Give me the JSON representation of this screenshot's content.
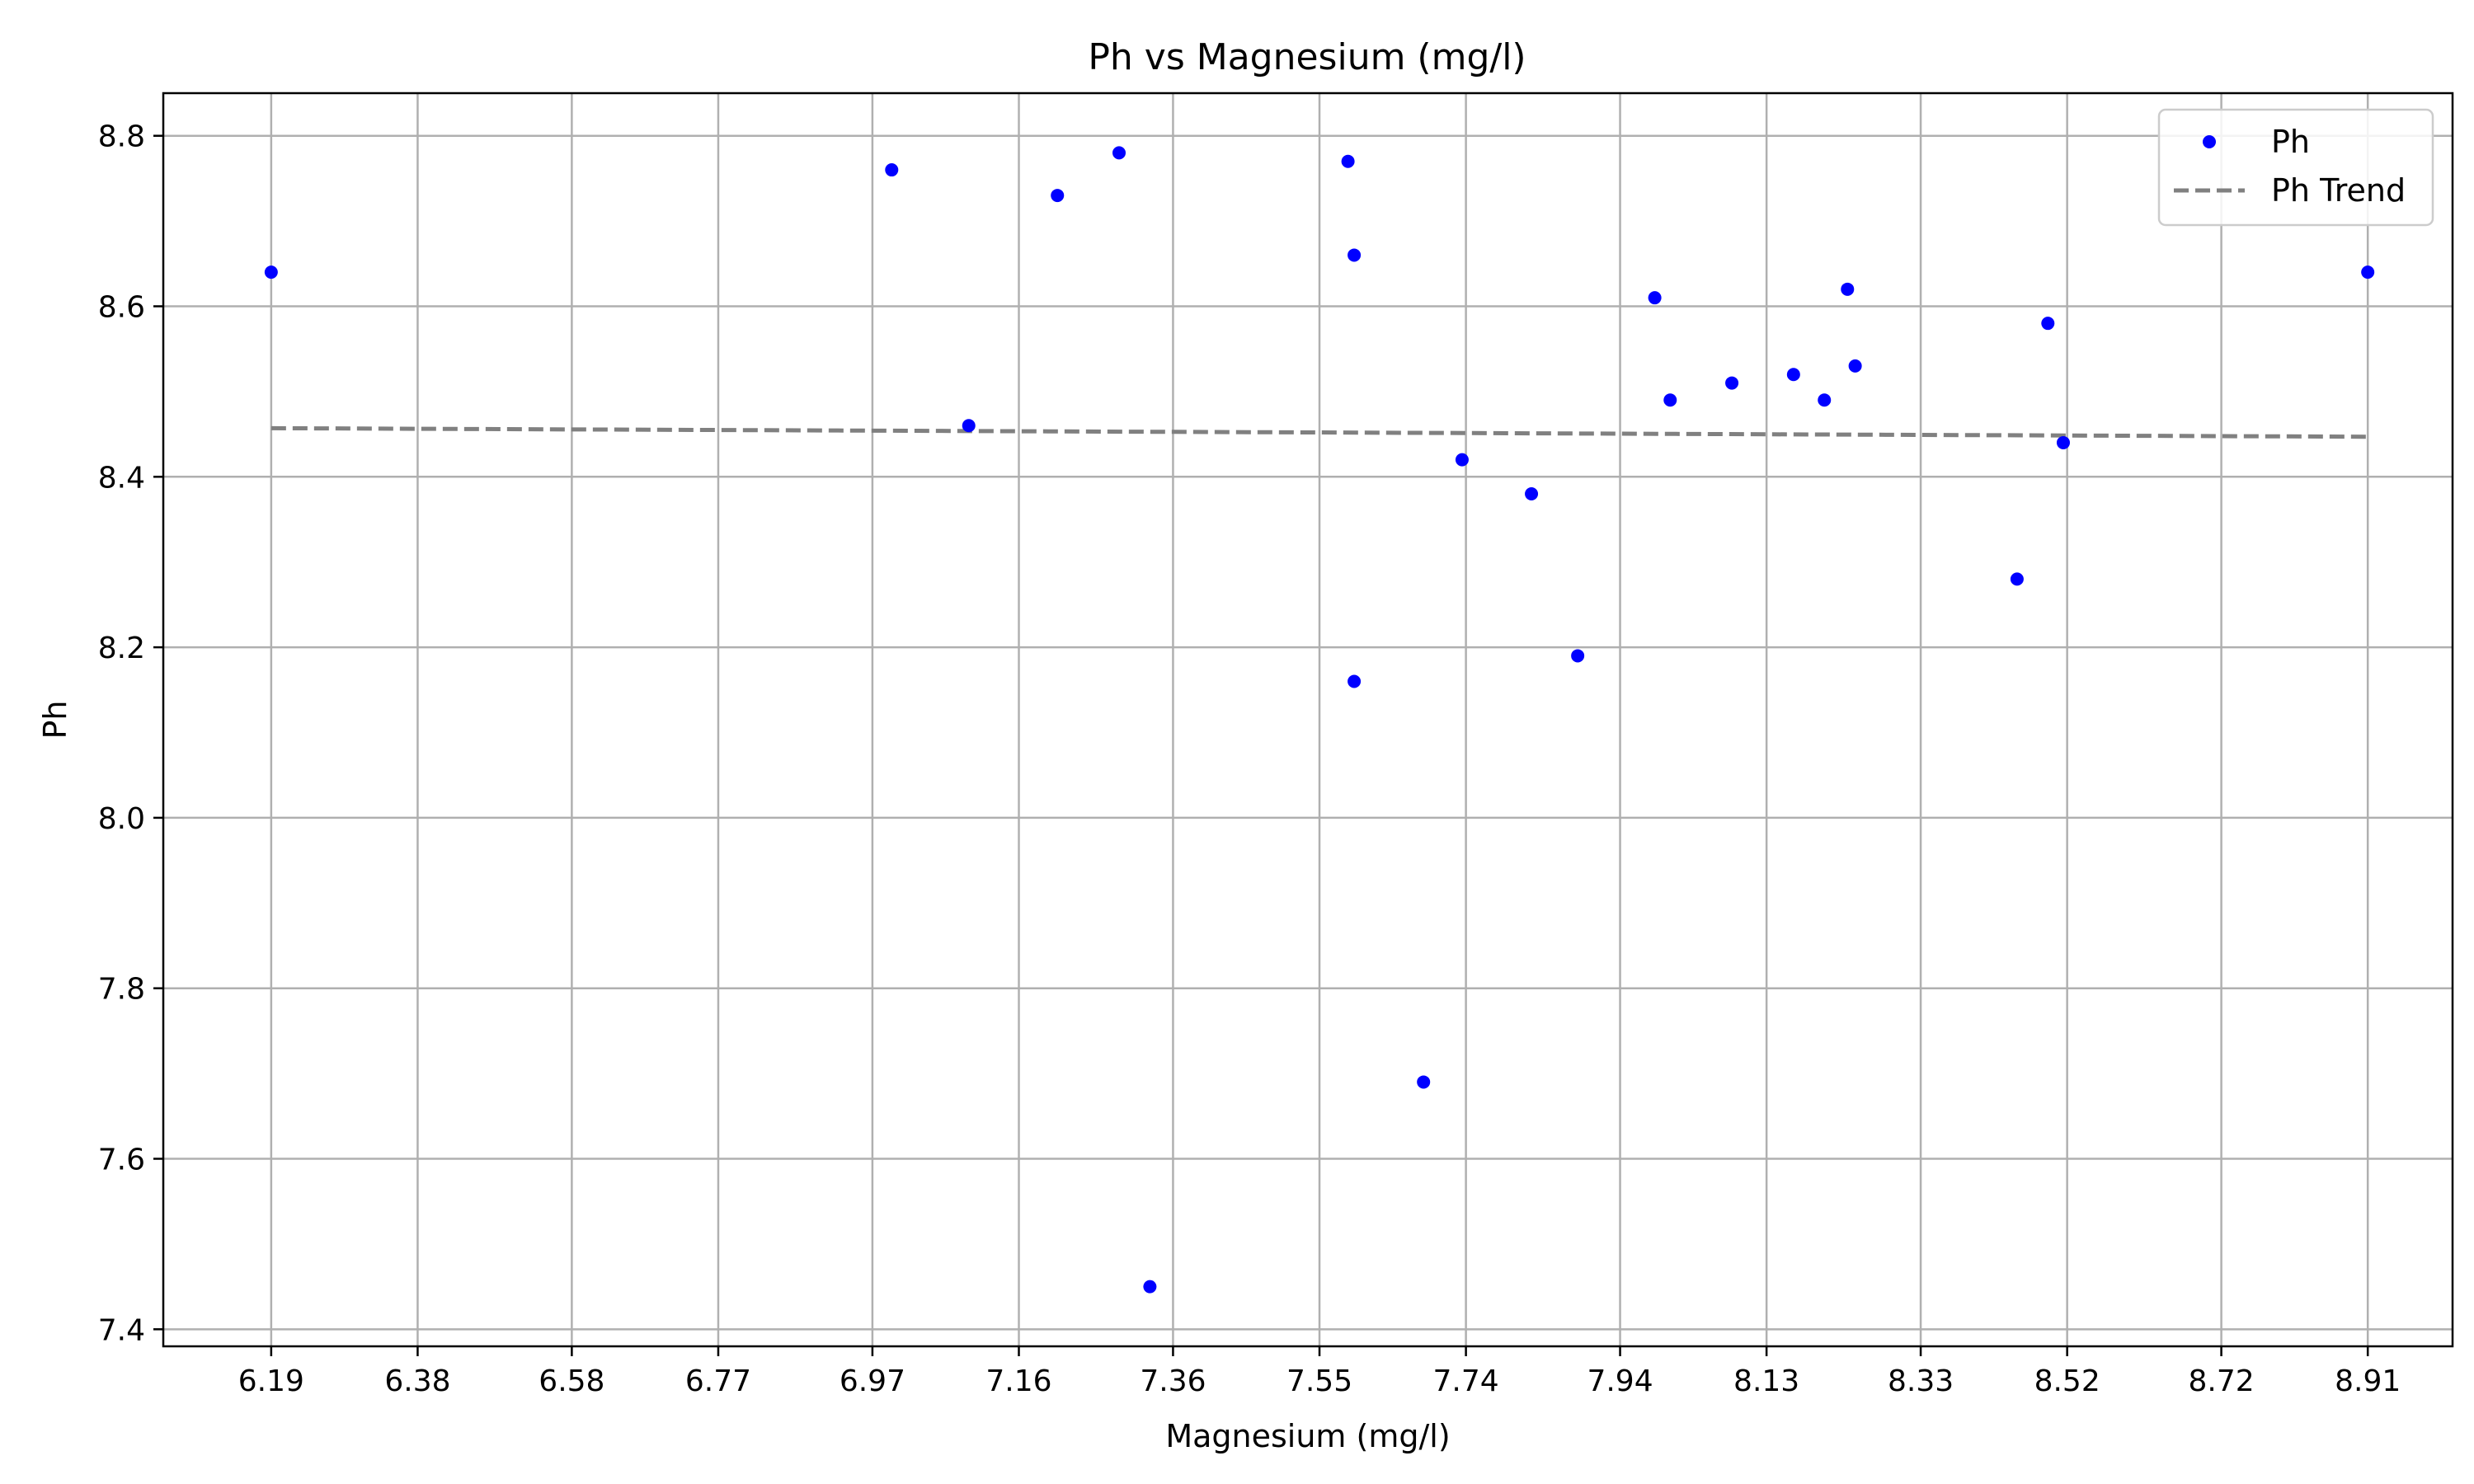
{
  "chart_data": {
    "type": "scatter",
    "title": "Ph vs Magnesium (mg/l)",
    "xlabel": "Magnesium (mg/l)",
    "ylabel": "Ph",
    "xlim": [
      6.05,
      9.02
    ],
    "ylim": [
      7.38,
      8.85
    ],
    "x_ticks": [
      6.19,
      6.38,
      6.58,
      6.77,
      6.97,
      7.16,
      7.36,
      7.55,
      7.74,
      7.94,
      8.13,
      8.33,
      8.52,
      8.72,
      8.91
    ],
    "y_ticks": [
      7.4,
      7.6,
      7.8,
      8.0,
      8.2,
      8.4,
      8.6,
      8.8
    ],
    "grid": true,
    "legend_position": "top-right",
    "colors": {
      "points": "#0000ff",
      "trend": "#808080",
      "grid": "#b0b0b0"
    },
    "series": [
      {
        "name": "Ph",
        "kind": "scatter",
        "points": [
          {
            "x": 6.19,
            "y": 8.64
          },
          {
            "x": 6.995,
            "y": 8.76
          },
          {
            "x": 7.095,
            "y": 8.46
          },
          {
            "x": 7.21,
            "y": 8.73
          },
          {
            "x": 7.29,
            "y": 8.78
          },
          {
            "x": 7.33,
            "y": 7.45
          },
          {
            "x": 7.587,
            "y": 8.77
          },
          {
            "x": 7.595,
            "y": 8.66
          },
          {
            "x": 7.595,
            "y": 8.16
          },
          {
            "x": 7.685,
            "y": 7.69
          },
          {
            "x": 7.735,
            "y": 8.42
          },
          {
            "x": 7.825,
            "y": 8.38
          },
          {
            "x": 7.885,
            "y": 8.19
          },
          {
            "x": 7.985,
            "y": 8.61
          },
          {
            "x": 8.005,
            "y": 8.49
          },
          {
            "x": 8.085,
            "y": 8.51
          },
          {
            "x": 8.165,
            "y": 8.52
          },
          {
            "x": 8.205,
            "y": 8.49
          },
          {
            "x": 8.235,
            "y": 8.62
          },
          {
            "x": 8.245,
            "y": 8.53
          },
          {
            "x": 8.455,
            "y": 8.28
          },
          {
            "x": 8.495,
            "y": 8.58
          },
          {
            "x": 8.515,
            "y": 8.44
          },
          {
            "x": 8.91,
            "y": 8.64
          }
        ]
      },
      {
        "name": "Ph Trend",
        "kind": "line",
        "style": "dashed",
        "points": [
          {
            "x": 6.19,
            "y": 8.457
          },
          {
            "x": 8.91,
            "y": 8.447
          }
        ]
      }
    ]
  }
}
